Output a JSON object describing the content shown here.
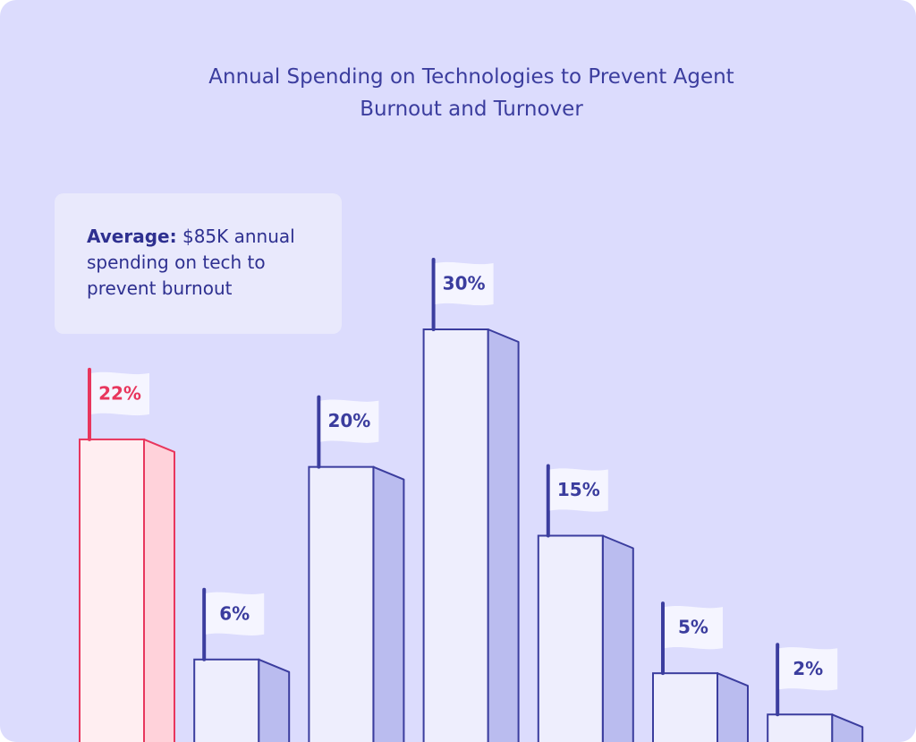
{
  "chart_data": {
    "type": "bar",
    "title": "Annual Spending on Technologies to Prevent Agent Burnout and Turnover",
    "annotation": {
      "label": "Average:",
      "text": "$85K annual spending on tech to prevent burnout"
    },
    "values": [
      22,
      6,
      20,
      30,
      15,
      5,
      2
    ],
    "value_labels": [
      "22%",
      "6%",
      "20%",
      "30%",
      "15%",
      "5%",
      "2%"
    ],
    "color": "#3b3d9e",
    "highlight_color": "#e8365d",
    "highlight_index": 0
  }
}
